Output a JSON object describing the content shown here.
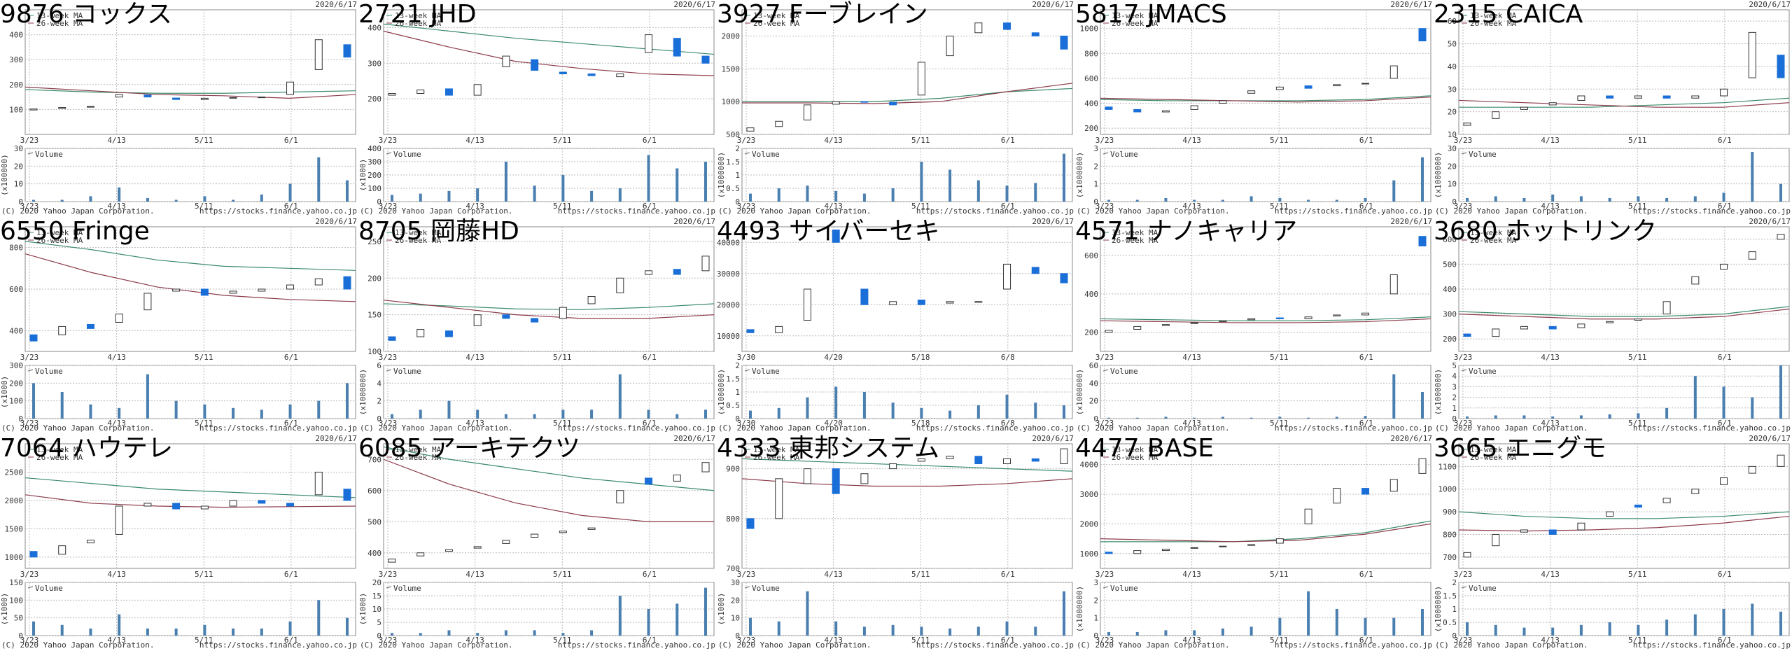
{
  "date": "2020/6/17",
  "copyright": "(C) 2020 Yahoo Japan Corporation.",
  "url": "https://stocks.finance.yahoo.co.jp",
  "volume_name": "Volume",
  "ma_legend": [
    {
      "name": "13-week MA",
      "color": "#3a8a6a"
    },
    {
      "name": "26-week MA",
      "color": "#8b3a4a"
    }
  ],
  "up_color": "#ffffff",
  "down_color": "#1a6ed8",
  "volume_color": "#4a7fb0",
  "chart_data": [
    {
      "type": "candlestick",
      "title": "9876 コックス",
      "xticks": [
        "3/23",
        "4/13",
        "5/11",
        "6/1"
      ],
      "ylim": [
        0,
        500
      ],
      "yticks": [
        100,
        200,
        300,
        400
      ],
      "open": [
        98,
        104,
        110,
        150,
        158,
        146,
        140,
        146,
        150,
        160,
        260,
        360
      ],
      "close": [
        102,
        108,
        112,
        160,
        150,
        140,
        145,
        148,
        150,
        210,
        380,
        310
      ],
      "ma": [
        [
          180,
          170,
          165,
          165,
          170,
          175
        ],
        [
          190,
          175,
          160,
          155,
          145,
          160
        ]
      ],
      "volume": [
        1,
        1,
        3,
        8,
        2,
        1,
        3,
        1,
        4,
        10,
        25,
        12
      ],
      "vlim": [
        0,
        30
      ],
      "vticks": [
        0,
        10,
        20,
        30
      ],
      "vunit": "(x100000)"
    },
    {
      "type": "candlestick",
      "title": "2721 JHD",
      "xticks": [
        "3/23",
        "4/13",
        "5/11",
        "6/1"
      ],
      "ylim": [
        100,
        450
      ],
      "yticks": [
        200,
        300,
        400
      ],
      "open": [
        210,
        215,
        228,
        210,
        290,
        310,
        275,
        270,
        262,
        330,
        370,
        320
      ],
      "close": [
        215,
        225,
        210,
        240,
        320,
        280,
        270,
        265,
        270,
        380,
        320,
        300
      ],
      "ma": [
        [
          410,
          390,
          370,
          355,
          340,
          325
        ],
        [
          390,
          345,
          305,
          285,
          270,
          265
        ]
      ],
      "volume": [
        50,
        60,
        80,
        100,
        300,
        120,
        200,
        80,
        100,
        350,
        250,
        300
      ],
      "vlim": [
        0,
        400
      ],
      "vticks": [
        0,
        100,
        200,
        300,
        400
      ],
      "vunit": "(x1000)"
    },
    {
      "type": "candlestick",
      "title": "3927 Fーブレイン",
      "xticks": [
        "3/23",
        "4/13",
        "5/11",
        "6/1"
      ],
      "ylim": [
        500,
        2400
      ],
      "yticks": [
        500,
        1000,
        1500,
        2000
      ],
      "open": [
        550,
        620,
        720,
        960,
        1000,
        990,
        1100,
        1700,
        2050,
        2200,
        2050,
        2000
      ],
      "close": [
        600,
        700,
        950,
        1000,
        990,
        950,
        1600,
        2000,
        2200,
        2100,
        2000,
        1800
      ],
      "ma": [
        [
          1000,
          1000,
          1000,
          1050,
          1150,
          1200
        ],
        [
          980,
          980,
          970,
          1000,
          1150,
          1280
        ]
      ],
      "volume": [
        0.3,
        0.5,
        0.6,
        0.4,
        0.3,
        0.5,
        1.5,
        1.2,
        0.8,
        0.6,
        0.7,
        1.8
      ],
      "vlim": [
        0,
        2
      ],
      "vticks": [
        0,
        0.5,
        1,
        1.5,
        2
      ],
      "vunit": "(x1000000)"
    },
    {
      "type": "candlestick",
      "title": "5817 JMACS",
      "xticks": [
        "3/23",
        "4/13",
        "5/11",
        "6/1"
      ],
      "ylim": [
        150,
        1150
      ],
      "yticks": [
        200,
        400,
        600,
        800,
        1000
      ],
      "open": [
        370,
        350,
        330,
        350,
        400,
        480,
        510,
        540,
        540,
        560,
        600,
        1000
      ],
      "close": [
        350,
        330,
        340,
        380,
        420,
        500,
        530,
        520,
        550,
        560,
        700,
        900
      ],
      "ma": [
        [
          430,
          420,
          420,
          420,
          430,
          460
        ],
        [
          440,
          430,
          420,
          410,
          420,
          450
        ]
      ],
      "volume": [
        0.1,
        0.1,
        0.2,
        0.1,
        0.1,
        0.3,
        0.2,
        0.1,
        0.1,
        0.2,
        1.2,
        2.5
      ],
      "vlim": [
        0,
        3
      ],
      "vticks": [
        0,
        1,
        2,
        3
      ],
      "vunit": "(x1000000)"
    },
    {
      "type": "candlestick",
      "title": "2315 CAICA",
      "xticks": [
        "3/23",
        "4/13",
        "5/11",
        "6/1"
      ],
      "ylim": [
        10,
        65
      ],
      "yticks": [
        10,
        20,
        30,
        40,
        50,
        60
      ],
      "open": [
        14,
        17,
        21,
        23,
        25,
        27,
        26,
        27,
        26,
        27,
        35,
        45
      ],
      "close": [
        15,
        20,
        22,
        24,
        27,
        26,
        27,
        26,
        27,
        30,
        55,
        35
      ],
      "ma": [
        [
          22,
          22,
          22,
          23,
          24,
          26
        ],
        [
          25,
          24,
          23,
          22,
          22,
          24
        ]
      ],
      "volume": [
        2,
        3,
        2,
        4,
        3,
        2,
        3,
        2,
        3,
        5,
        28,
        10
      ],
      "vlim": [
        0,
        30
      ],
      "vticks": [
        0,
        10,
        20,
        30
      ],
      "vunit": "(x1000000)"
    },
    {
      "type": "candlestick",
      "title": "6550 Fringe",
      "xticks": [
        "3/23",
        "4/13",
        "5/11",
        "6/1"
      ],
      "ylim": [
        300,
        900
      ],
      "yticks": [
        400,
        600,
        800
      ],
      "open": [
        380,
        380,
        430,
        440,
        500,
        590,
        600,
        580,
        590,
        600,
        620,
        660
      ],
      "close": [
        350,
        420,
        410,
        480,
        580,
        600,
        570,
        590,
        600,
        620,
        650,
        600
      ],
      "ma": [
        [
          830,
          790,
          740,
          710,
          700,
          690
        ],
        [
          770,
          680,
          610,
          570,
          550,
          540
        ]
      ],
      "volume": [
        200,
        150,
        80,
        60,
        250,
        100,
        80,
        60,
        50,
        80,
        100,
        200
      ],
      "vlim": [
        0,
        300
      ],
      "vticks": [
        0,
        100,
        200,
        300
      ],
      "vunit": "(x1000)"
    },
    {
      "type": "candlestick",
      "title": "8705 岡藤HD",
      "xticks": [
        "3/23",
        "4/13",
        "5/11",
        "6/1"
      ],
      "ylim": [
        100,
        270
      ],
      "yticks": [
        100,
        150,
        200,
        250
      ],
      "open": [
        120,
        120,
        128,
        135,
        150,
        145,
        145,
        165,
        180,
        205,
        212,
        210
      ],
      "close": [
        115,
        130,
        120,
        150,
        145,
        140,
        160,
        175,
        200,
        210,
        205,
        230
      ],
      "ma": [
        [
          165,
          162,
          158,
          157,
          160,
          165
        ],
        [
          170,
          160,
          150,
          145,
          145,
          150
        ]
      ],
      "volume": [
        0.5,
        1,
        2,
        1,
        0.5,
        0.5,
        1,
        1,
        5,
        1,
        0.5,
        1
      ],
      "vlim": [
        0,
        6
      ],
      "vticks": [
        0,
        2,
        4,
        6
      ],
      "vunit": "(x1000000)"
    },
    {
      "type": "candlestick",
      "title": "4493 サイバーセキ",
      "xticks": [
        "3/30",
        "4/20",
        "5/18",
        "6/8"
      ],
      "ylim": [
        5000,
        45000
      ],
      "yticks": [
        10000,
        20000,
        30000,
        40000
      ],
      "open": [
        12000,
        11000,
        15000,
        44000,
        25000,
        20000,
        21500,
        20500,
        21000,
        25000,
        32000,
        30000
      ],
      "close": [
        11000,
        13000,
        25000,
        40000,
        20000,
        21000,
        20000,
        21000,
        21000,
        33000,
        30000,
        27000
      ],
      "volume": [
        0.3,
        0.4,
        0.8,
        1.2,
        1,
        0.6,
        0.4,
        0.3,
        0.5,
        0.9,
        0.6,
        0.5
      ],
      "vlim": [
        0,
        2
      ],
      "vticks": [
        0,
        0.5,
        1,
        1.5,
        2
      ],
      "vunit": "(x1000000)"
    },
    {
      "type": "candlestick",
      "title": "4571 ナノキャリア",
      "xticks": [
        "3/23",
        "4/13",
        "5/11",
        "6/1"
      ],
      "ylim": [
        100,
        750
      ],
      "yticks": [
        200,
        400,
        600
      ],
      "open": [
        200,
        215,
        235,
        245,
        255,
        265,
        275,
        270,
        285,
        290,
        400,
        700
      ],
      "close": [
        210,
        230,
        240,
        250,
        260,
        270,
        270,
        280,
        290,
        300,
        500,
        650
      ],
      "ma": [
        [
          270,
          265,
          260,
          260,
          265,
          280
        ],
        [
          260,
          255,
          250,
          250,
          255,
          270
        ]
      ],
      "volume": [
        1,
        1,
        2,
        1,
        2,
        1,
        2,
        1,
        2,
        3,
        50,
        30
      ],
      "vlim": [
        0,
        60
      ],
      "vticks": [
        0,
        20,
        40,
        60
      ],
      "vunit": "(x1000000)"
    },
    {
      "type": "candlestick",
      "title": "3680 ホットリンク",
      "xticks": [
        "3/23",
        "4/13",
        "5/11",
        "6/1"
      ],
      "ylim": [
        150,
        650
      ],
      "yticks": [
        200,
        300,
        400,
        500,
        600
      ],
      "open": [
        220,
        210,
        240,
        250,
        245,
        265,
        275,
        300,
        420,
        480,
        520,
        600
      ],
      "close": [
        210,
        240,
        250,
        240,
        260,
        270,
        280,
        350,
        450,
        500,
        550,
        620
      ],
      "ma": [
        [
          310,
          300,
          290,
          290,
          300,
          330
        ],
        [
          300,
          290,
          280,
          280,
          290,
          320
        ]
      ],
      "volume": [
        0.2,
        0.3,
        0.3,
        0.2,
        0.3,
        0.4,
        0.5,
        1,
        4,
        3,
        2,
        5
      ],
      "vlim": [
        0,
        5
      ],
      "vticks": [
        0,
        1,
        2,
        3,
        4,
        5
      ],
      "vunit": "(x1000000)"
    },
    {
      "type": "candlestick",
      "title": "7064 ハウテレ",
      "xticks": [
        "3/23",
        "4/13",
        "5/11",
        "6/1"
      ],
      "ylim": [
        800,
        3000
      ],
      "yticks": [
        1000,
        1500,
        2000,
        2500
      ],
      "open": [
        1100,
        1050,
        1250,
        1400,
        1900,
        1950,
        1850,
        1900,
        2000,
        1950,
        2100,
        2200
      ],
      "close": [
        1000,
        1200,
        1300,
        1900,
        1950,
        1850,
        1900,
        2000,
        1950,
        1900,
        2500,
        2000
      ],
      "ma": [
        [
          2400,
          2300,
          2200,
          2150,
          2100,
          2050
        ],
        [
          2100,
          1950,
          1900,
          1880,
          1890,
          1900
        ]
      ],
      "volume": [
        40,
        30,
        20,
        60,
        20,
        20,
        30,
        20,
        20,
        40,
        100,
        50
      ],
      "vlim": [
        0,
        150
      ],
      "vticks": [
        0,
        50,
        100,
        150
      ],
      "vunit": "(x1000)"
    },
    {
      "type": "candlestick",
      "title": "6085 アーキテクツ",
      "xticks": [
        "3/23",
        "4/13",
        "5/11",
        "6/1"
      ],
      "ylim": [
        350,
        750
      ],
      "yticks": [
        400,
        500,
        600,
        700
      ],
      "open": [
        370,
        390,
        405,
        415,
        430,
        450,
        465,
        475,
        560,
        640,
        630,
        660
      ],
      "close": [
        380,
        400,
        410,
        420,
        440,
        460,
        470,
        480,
        600,
        620,
        650,
        690
      ],
      "ma": [
        [
          740,
          700,
          670,
          640,
          620,
          600
        ],
        [
          700,
          620,
          560,
          520,
          500,
          500
        ]
      ],
      "volume": [
        1,
        1,
        2,
        1,
        2,
        2,
        1,
        2,
        15,
        10,
        12,
        18
      ],
      "vlim": [
        0,
        20
      ],
      "vticks": [
        0,
        5,
        10,
        15,
        20
      ],
      "vunit": "(x1000)"
    },
    {
      "type": "candlestick",
      "title": "4333 東邦システム",
      "xticks": [
        "3/23",
        "4/13",
        "5/11",
        "6/1"
      ],
      "ylim": [
        700,
        950
      ],
      "yticks": [
        700,
        800,
        900
      ],
      "open": [
        800,
        800,
        870,
        900,
        870,
        900,
        915,
        920,
        925,
        910,
        920,
        910
      ],
      "close": [
        780,
        880,
        900,
        850,
        890,
        910,
        920,
        925,
        910,
        920,
        915,
        940
      ],
      "ma": [
        [
          920,
          915,
          910,
          905,
          900,
          895
        ],
        [
          880,
          870,
          865,
          865,
          870,
          880
        ]
      ],
      "volume": [
        10,
        8,
        25,
        8,
        5,
        6,
        5,
        4,
        5,
        8,
        5,
        25
      ],
      "vlim": [
        0,
        30
      ],
      "vticks": [
        0,
        10,
        20,
        30
      ],
      "vunit": "(x1000)"
    },
    {
      "type": "candlestick",
      "title": "4477 BASE",
      "xticks": [
        "3/23",
        "4/13",
        "5/11",
        "6/1"
      ],
      "ylim": [
        500,
        4700
      ],
      "yticks": [
        1000,
        2000,
        3000,
        4000
      ],
      "open": [
        1050,
        1000,
        1100,
        1180,
        1230,
        1280,
        1350,
        2000,
        2700,
        3200,
        3100,
        3700
      ],
      "close": [
        1000,
        1100,
        1150,
        1200,
        1250,
        1300,
        1500,
        2500,
        3200,
        3000,
        3500,
        4200
      ],
      "ma": [
        [
          1400,
          1400,
          1400,
          1500,
          1700,
          2100
        ],
        [
          1500,
          1450,
          1400,
          1450,
          1650,
          2000
        ]
      ],
      "volume": [
        0.2,
        0.2,
        0.3,
        0.3,
        0.4,
        0.5,
        1,
        2.5,
        1.5,
        1,
        1,
        1.5
      ],
      "vlim": [
        0,
        3
      ],
      "vticks": [
        0,
        1,
        2,
        3
      ],
      "vunit": "(x1000000)"
    },
    {
      "type": "candlestick",
      "title": "3665 エニグモ",
      "xticks": [
        "3/23",
        "4/13",
        "5/11",
        "6/1"
      ],
      "ylim": [
        650,
        1200
      ],
      "yticks": [
        700,
        800,
        900,
        1000,
        1100
      ],
      "open": [
        700,
        750,
        810,
        820,
        820,
        880,
        930,
        940,
        980,
        1020,
        1070,
        1100
      ],
      "close": [
        720,
        800,
        820,
        800,
        850,
        900,
        920,
        960,
        1000,
        1050,
        1100,
        1150
      ],
      "ma": [
        [
          900,
          880,
          870,
          870,
          880,
          900
        ],
        [
          820,
          815,
          820,
          830,
          850,
          880
        ]
      ],
      "volume": [
        0.5,
        0.4,
        0.3,
        0.3,
        0.4,
        0.5,
        0.4,
        0.6,
        0.8,
        1,
        1.2,
        0.9
      ],
      "vlim": [
        0,
        2
      ],
      "vticks": [
        0,
        0.5,
        1,
        1.5,
        2
      ],
      "vunit": "(x1000000)"
    }
  ]
}
